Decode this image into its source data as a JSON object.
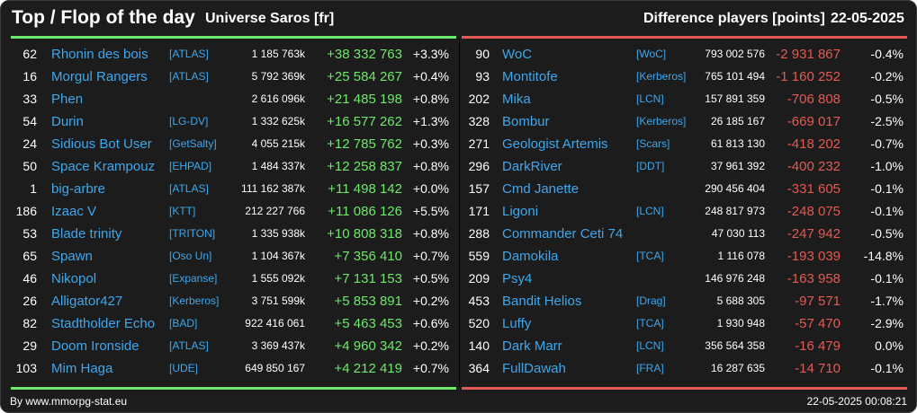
{
  "header": {
    "title": "Top / Flop of the day",
    "subtitle": "Universe Saros [fr]",
    "metric": "Difference players [points]",
    "date": "22-05-2025"
  },
  "colors": {
    "top_accent": "#6ee86a",
    "flop_accent": "#e35a54",
    "name_link": "#3ea7ee",
    "background": "#1c1c1c"
  },
  "top": [
    {
      "rank": "62",
      "name": "Rhonin des bois",
      "alliance": "[ATLAS]",
      "points": "1 185 763k",
      "diff": "+38 332 763",
      "pct": "+3.3%"
    },
    {
      "rank": "16",
      "name": "Morgul Rangers",
      "alliance": "[ATLAS]",
      "points": "5 792 369k",
      "diff": "+25 584 267",
      "pct": "+0.4%"
    },
    {
      "rank": "33",
      "name": "Phen",
      "alliance": "",
      "points": "2 616 096k",
      "diff": "+21 485 198",
      "pct": "+0.8%"
    },
    {
      "rank": "54",
      "name": "Durin",
      "alliance": "[LG-DV]",
      "points": "1 332 625k",
      "diff": "+16 577 262",
      "pct": "+1.3%"
    },
    {
      "rank": "24",
      "name": "Sidious Bot User",
      "alliance": "[GetSalty]",
      "points": "4 055 215k",
      "diff": "+12 785 762",
      "pct": "+0.3%"
    },
    {
      "rank": "50",
      "name": "Space Krampouz",
      "alliance": "[EHPAD]",
      "points": "1 484 337k",
      "diff": "+12 258 837",
      "pct": "+0.8%"
    },
    {
      "rank": "1",
      "name": "big-arbre",
      "alliance": "[ATLAS]",
      "points": "111 162 387k",
      "diff": "+11 498 142",
      "pct": "+0.0%"
    },
    {
      "rank": "186",
      "name": "Izaac V",
      "alliance": "[KTT]",
      "points": "212 227 766",
      "diff": "+11 086 126",
      "pct": "+5.5%"
    },
    {
      "rank": "53",
      "name": "Blade trinity",
      "alliance": "[TRITON]",
      "points": "1 335 938k",
      "diff": "+10 808 318",
      "pct": "+0.8%"
    },
    {
      "rank": "65",
      "name": "Spawn",
      "alliance": "[Oso Un]",
      "points": "1 104 367k",
      "diff": "+7 356 410",
      "pct": "+0.7%"
    },
    {
      "rank": "46",
      "name": "Nikopol",
      "alliance": "[Expanse]",
      "points": "1 555 092k",
      "diff": "+7 131 153",
      "pct": "+0.5%"
    },
    {
      "rank": "26",
      "name": "Alligator427",
      "alliance": "[Kerberos]",
      "points": "3 751 599k",
      "diff": "+5 853 891",
      "pct": "+0.2%"
    },
    {
      "rank": "82",
      "name": "Stadtholder Echo",
      "alliance": "[BAD]",
      "points": "922 416 061",
      "diff": "+5 463 453",
      "pct": "+0.6%"
    },
    {
      "rank": "29",
      "name": "Doom Ironside",
      "alliance": "[ATLAS]",
      "points": "3 369 437k",
      "diff": "+4 960 342",
      "pct": "+0.2%"
    },
    {
      "rank": "103",
      "name": "Mim Haga",
      "alliance": "[UDE]",
      "points": "649 850 167",
      "diff": "+4 212 419",
      "pct": "+0.7%"
    }
  ],
  "flop": [
    {
      "rank": "90",
      "name": "WoC",
      "alliance": "[WoC]",
      "points": "793 002 576",
      "diff": "-2 931 867",
      "pct": "-0.4%"
    },
    {
      "rank": "93",
      "name": "Montitofe",
      "alliance": "[Kerberos]",
      "points": "765 101 494",
      "diff": "-1 160 252",
      "pct": "-0.2%"
    },
    {
      "rank": "202",
      "name": "Mika",
      "alliance": "[LCN]",
      "points": "157 891 359",
      "diff": "-706 808",
      "pct": "-0.5%"
    },
    {
      "rank": "328",
      "name": "Bombur",
      "alliance": "[Kerberos]",
      "points": "26 185 167",
      "diff": "-669 017",
      "pct": "-2.5%"
    },
    {
      "rank": "271",
      "name": "Geologist Artemis",
      "alliance": "[Scars]",
      "points": "61 813 130",
      "diff": "-418 202",
      "pct": "-0.7%"
    },
    {
      "rank": "296",
      "name": "DarkRiver",
      "alliance": "[DDT]",
      "points": "37 961 392",
      "diff": "-400 232",
      "pct": "-1.0%"
    },
    {
      "rank": "157",
      "name": "Cmd Janette",
      "alliance": "",
      "points": "290 456 404",
      "diff": "-331 605",
      "pct": "-0.1%"
    },
    {
      "rank": "171",
      "name": "Ligoni",
      "alliance": "[LCN]",
      "points": "248 817 973",
      "diff": "-248 075",
      "pct": "-0.1%"
    },
    {
      "rank": "288",
      "name": "Commander Ceti 74",
      "alliance": "",
      "points": "47 030 113",
      "diff": "-247 942",
      "pct": "-0.5%"
    },
    {
      "rank": "559",
      "name": "Damokila",
      "alliance": "[TCA]",
      "points": "1 116 078",
      "diff": "-193 039",
      "pct": "-14.8%"
    },
    {
      "rank": "209",
      "name": "Psy4",
      "alliance": "",
      "points": "146 976 248",
      "diff": "-163 958",
      "pct": "-0.1%"
    },
    {
      "rank": "453",
      "name": "Bandit Helios",
      "alliance": "[Drag]",
      "points": "5 688 305",
      "diff": "-97 571",
      "pct": "-1.7%"
    },
    {
      "rank": "520",
      "name": "Luffy",
      "alliance": "[TCA]",
      "points": "1 930 948",
      "diff": "-57 470",
      "pct": "-2.9%"
    },
    {
      "rank": "140",
      "name": "Dark Marr",
      "alliance": "[LCN]",
      "points": "356 564 358",
      "diff": "-16 479",
      "pct": "0.0%"
    },
    {
      "rank": "364",
      "name": "FullDawah",
      "alliance": "[FRA]",
      "points": "16 287 635",
      "diff": "-14 710",
      "pct": "-0.1%"
    }
  ],
  "footer": {
    "credit": "By www.mmorpg-stat.eu",
    "timestamp": "22-05-2025 00:08:21"
  }
}
